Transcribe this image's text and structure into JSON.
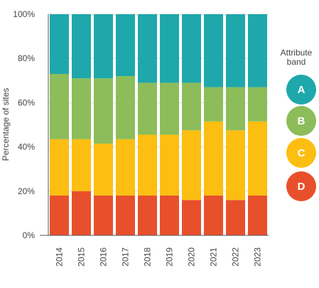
{
  "chart_data": {
    "type": "bar",
    "stacked": true,
    "categories": [
      "2014",
      "2015",
      "2016",
      "2017",
      "2018",
      "2019",
      "2020",
      "2021",
      "2022",
      "2023"
    ],
    "series": [
      {
        "name": "D",
        "color": "#E8502B",
        "values": [
          18,
          20,
          18,
          18,
          18,
          18,
          16,
          18,
          16,
          18
        ]
      },
      {
        "name": "C",
        "color": "#FDBE12",
        "values": [
          25.5,
          23.5,
          23.5,
          25.5,
          27.5,
          27.5,
          31.5,
          33.5,
          31.5,
          33.5
        ]
      },
      {
        "name": "B",
        "color": "#8CBD5A",
        "values": [
          29.5,
          27.5,
          29.5,
          28.5,
          23.5,
          23.5,
          21.5,
          15.5,
          19.5,
          15.5
        ]
      },
      {
        "name": "A",
        "color": "#1FA8AB",
        "values": [
          27,
          29,
          29,
          28,
          31,
          31,
          31,
          33,
          33,
          33
        ]
      }
    ],
    "ylabel": "Percentage of sites",
    "xlabel": "",
    "ylim": [
      0,
      100
    ],
    "yticks": [
      "0%",
      "20%",
      "40%",
      "60%",
      "80%",
      "100%"
    ],
    "legend": {
      "title": "Attribute band",
      "position": "right",
      "items": [
        {
          "label": "A",
          "color": "#1FA8AB"
        },
        {
          "label": "B",
          "color": "#8CBD5A"
        },
        {
          "label": "C",
          "color": "#FDBE12"
        },
        {
          "label": "D",
          "color": "#E8502B"
        }
      ]
    }
  }
}
